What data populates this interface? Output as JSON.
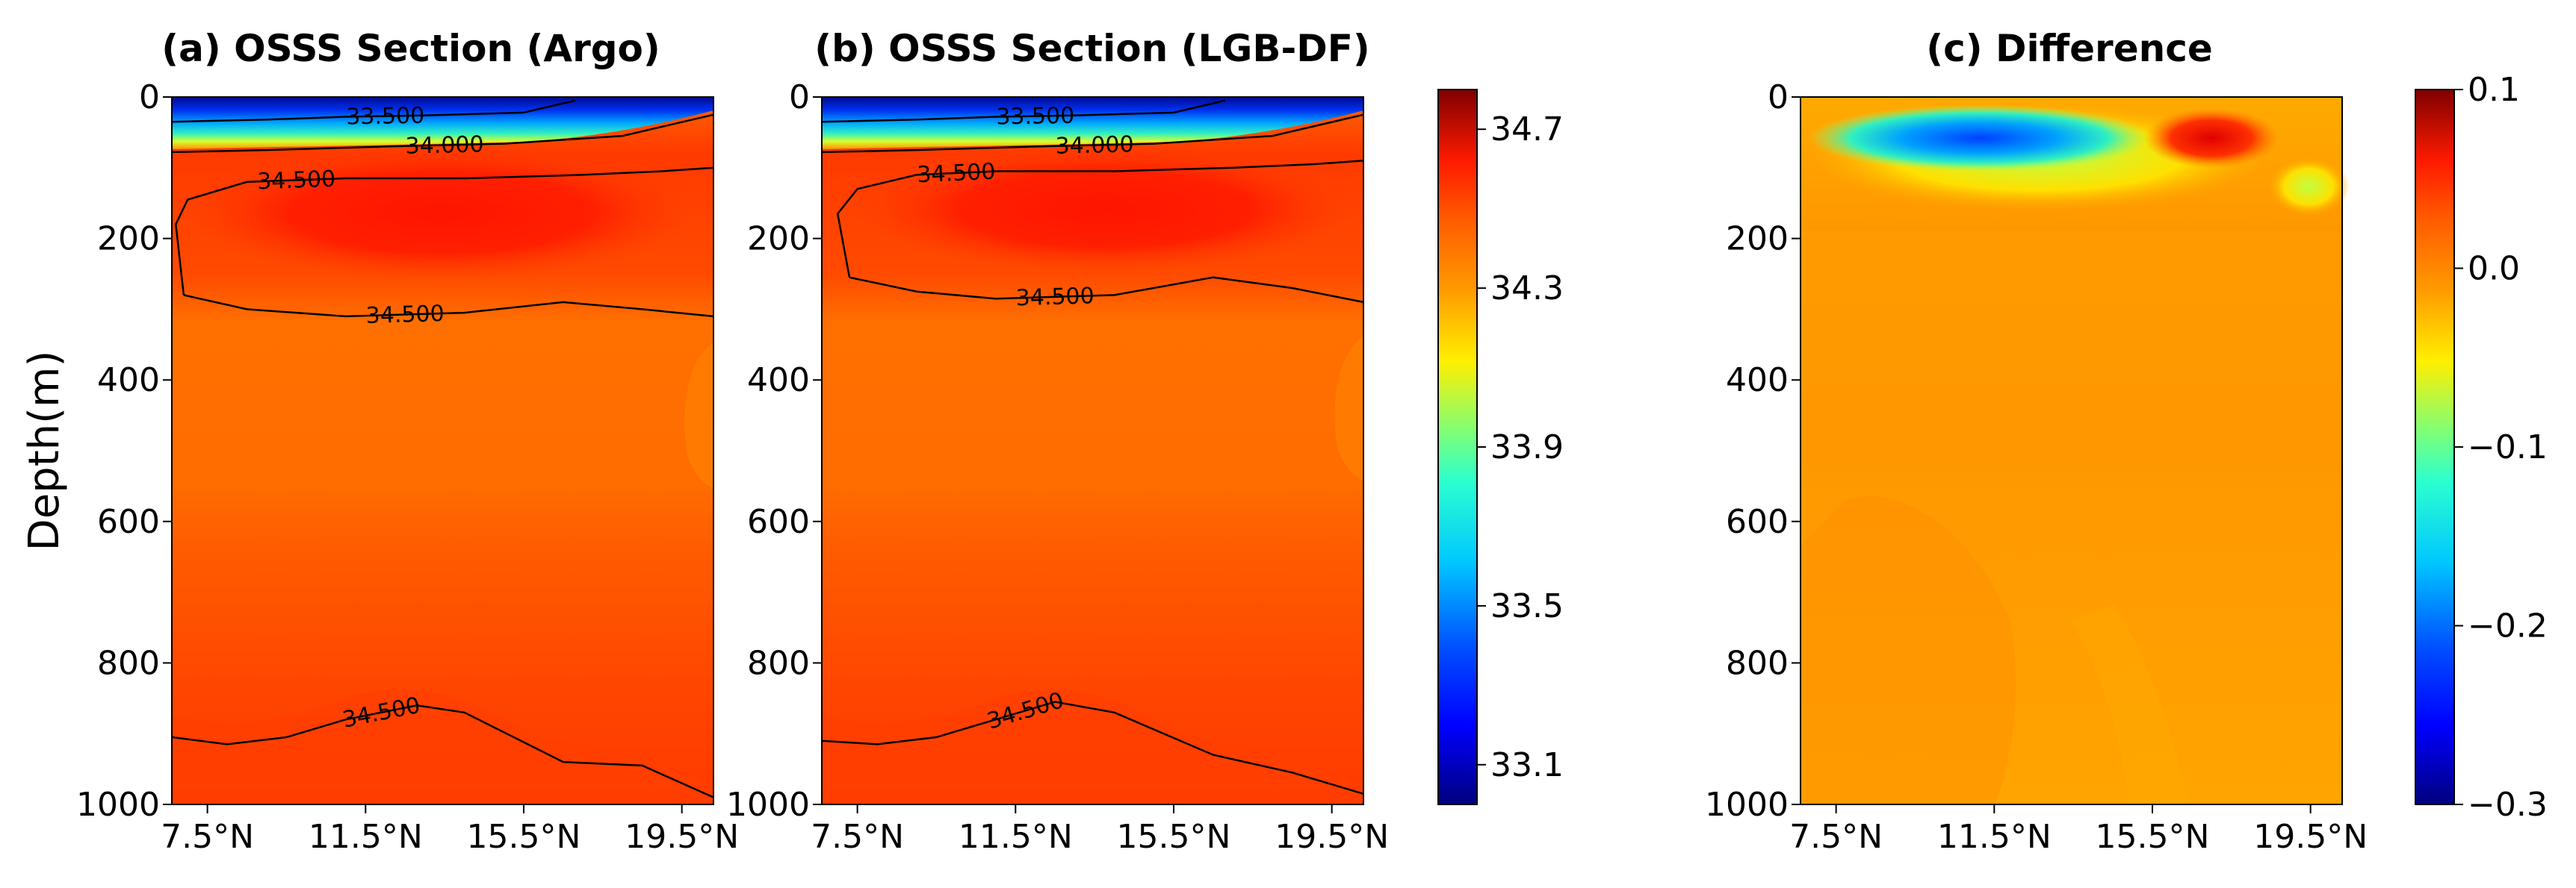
{
  "chart_data": [
    {
      "type": "heatmap",
      "title": "(a) OSSS Section (Argo)",
      "ylabel": "Depth(m)",
      "xlabel": "",
      "x_ticks": [
        "7.5°N",
        "11.5°N",
        "15.5°N",
        "19.5°N"
      ],
      "x_tick_values": [
        7.5,
        11.5,
        15.5,
        19.5
      ],
      "xlim": [
        6.6,
        20.3
      ],
      "y_ticks": [
        "0",
        "200",
        "400",
        "600",
        "800",
        "1000"
      ],
      "y_tick_values": [
        0,
        200,
        400,
        600,
        800,
        1000
      ],
      "ylim": [
        1000,
        0
      ],
      "colorbar": "salinity",
      "contours": [
        {
          "label": "33.500",
          "x": [
            6.6,
            9,
            11,
            13,
            15.5,
            16.8
          ],
          "y": [
            35,
            32,
            28,
            26,
            22,
            5
          ]
        },
        {
          "label": "34.000",
          "x": [
            6.6,
            9,
            12,
            15,
            18,
            20.3
          ],
          "y": [
            78,
            75,
            70,
            66,
            55,
            25
          ]
        },
        {
          "label": "34.500",
          "x": [
            6.9,
            6.7,
            7.0,
            8.5,
            11,
            14,
            17,
            19,
            20.3
          ],
          "y": [
            280,
            180,
            145,
            120,
            115,
            115,
            110,
            105,
            100
          ]
        },
        {
          "label": "34.500",
          "x": [
            6.9,
            8.5,
            11,
            14,
            16.5,
            18.5,
            20.3
          ],
          "y": [
            280,
            300,
            310,
            305,
            290,
            300,
            310
          ]
        },
        {
          "label": "34.500",
          "x": [
            6.6,
            8,
            9.5,
            11,
            12.8,
            14,
            16.5,
            18.5,
            20.3
          ],
          "y": [
            905,
            915,
            905,
            880,
            860,
            870,
            940,
            945,
            990
          ]
        }
      ]
    },
    {
      "type": "heatmap",
      "title": "(b) OSSS Section (LGB-DF)",
      "xlabel": "",
      "x_ticks": [
        "7.5°N",
        "11.5°N",
        "15.5°N",
        "19.5°N"
      ],
      "x_tick_values": [
        7.5,
        11.5,
        15.5,
        19.5
      ],
      "xlim": [
        6.6,
        20.3
      ],
      "y_ticks": [
        "0",
        "200",
        "400",
        "600",
        "800",
        "1000"
      ],
      "y_tick_values": [
        0,
        200,
        400,
        600,
        800,
        1000
      ],
      "ylim": [
        1000,
        0
      ],
      "colorbar": "salinity",
      "contours": [
        {
          "label": "33.500",
          "x": [
            6.6,
            9,
            11,
            13,
            15.5,
            16.8
          ],
          "y": [
            35,
            32,
            28,
            26,
            22,
            5
          ]
        },
        {
          "label": "34.000",
          "x": [
            6.6,
            9,
            12,
            15,
            18,
            20.3
          ],
          "y": [
            78,
            75,
            70,
            66,
            55,
            25
          ]
        },
        {
          "label": "34.500",
          "x": [
            7.3,
            7.0,
            7.5,
            9,
            11,
            14,
            17,
            19,
            20.3
          ],
          "y": [
            255,
            165,
            130,
            110,
            105,
            105,
            100,
            95,
            90
          ]
        },
        {
          "label": "34.500",
          "x": [
            7.3,
            9,
            11,
            14,
            16.5,
            18.5,
            20.3
          ],
          "y": [
            255,
            275,
            285,
            280,
            255,
            270,
            290
          ]
        },
        {
          "label": "34.500",
          "x": [
            6.6,
            8,
            9.5,
            11,
            12.5,
            14,
            16.5,
            18.5,
            20.3
          ],
          "y": [
            910,
            915,
            905,
            880,
            855,
            870,
            930,
            955,
            985
          ]
        }
      ]
    },
    {
      "type": "heatmap",
      "title": "(c) Difference",
      "xlabel": "",
      "x_ticks": [
        "7.5°N",
        "11.5°N",
        "15.5°N",
        "19.5°N"
      ],
      "x_tick_values": [
        7.5,
        11.5,
        15.5,
        19.5
      ],
      "xlim": [
        6.6,
        20.3
      ],
      "y_ticks": [
        "0",
        "200",
        "400",
        "600",
        "800",
        "1000"
      ],
      "y_tick_values": [
        0,
        200,
        400,
        600,
        800,
        1000
      ],
      "ylim": [
        1000,
        0
      ],
      "colorbar": "difference",
      "features": [
        {
          "name": "negative-anomaly",
          "x_center": 11.5,
          "depth_center": 70,
          "value": -0.18
        },
        {
          "name": "positive-anomaly",
          "x_center": 17.2,
          "depth_center": 70,
          "value": 0.08
        },
        {
          "name": "minor-negative-anomaly",
          "x_center": 19.6,
          "depth_center": 130,
          "value": -0.04
        }
      ]
    }
  ],
  "colorbars": {
    "salinity": {
      "min": 33.0,
      "max": 34.8,
      "tick_values": [
        34.7,
        34.3,
        33.9,
        33.5,
        33.1
      ],
      "tick_labels": [
        "34.7",
        "34.3",
        "33.9",
        "33.5",
        "33.1"
      ]
    },
    "difference": {
      "min": -0.3,
      "max": 0.1,
      "tick_values": [
        0.1,
        0.0,
        -0.1,
        -0.2,
        -0.3
      ],
      "tick_labels": [
        "0.1",
        "0.0",
        "−0.1",
        "−0.2",
        "−0.3"
      ]
    }
  },
  "colors": {
    "jet_dark_blue": "#000080",
    "jet_red": "#ff0000",
    "main_body": "#ff4d00",
    "mid_orange": "#ff7800",
    "diff_body": "#ffa000"
  }
}
